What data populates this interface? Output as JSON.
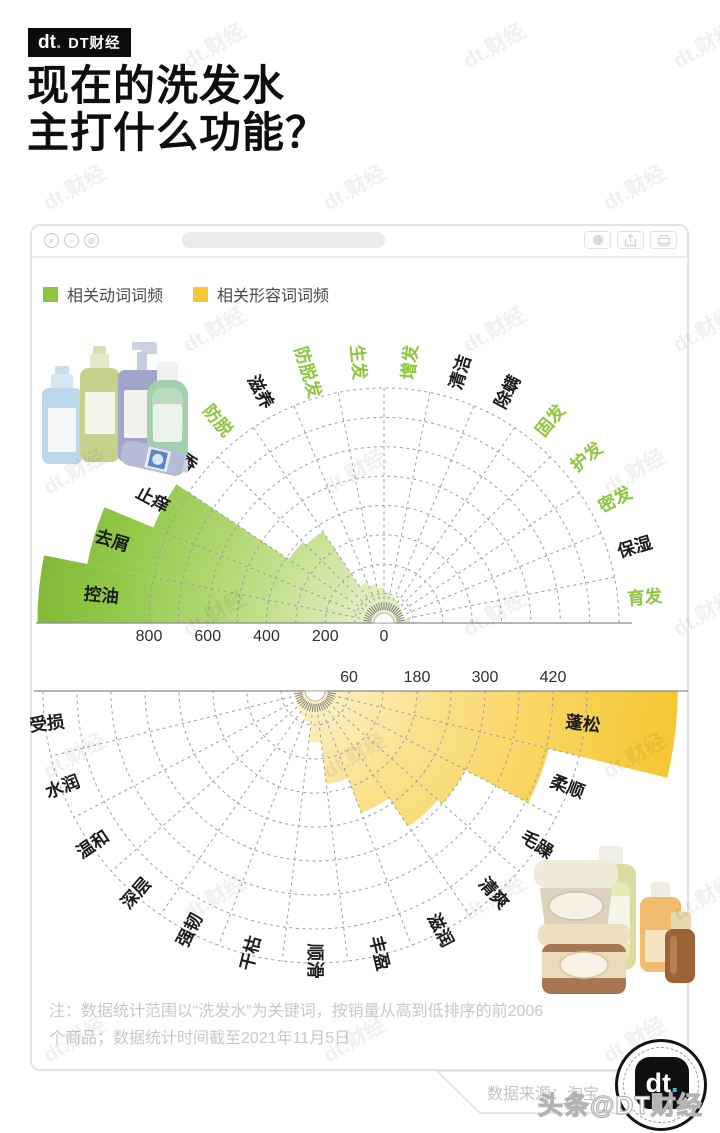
{
  "header": {
    "logo": "dt",
    "logo_dot": ".",
    "brand": "DT财经",
    "title_line1": "现在的洗发水",
    "title_line2": "主打什么功能？"
  },
  "watermark": {
    "text": "dt.财经"
  },
  "window": {
    "controls": [
      {
        "name": "close",
        "glyph": "×"
      },
      {
        "name": "minimize",
        "glyph": "−"
      },
      {
        "name": "block",
        "glyph": "⊘"
      }
    ],
    "legend": [
      {
        "label": "相关动词词频",
        "color": "#8cc63f"
      },
      {
        "label": "相关形容词词频",
        "color": "#f6c831"
      }
    ],
    "note_line1": "注：数据统计范围以“洗发水”为关键词，按销量从高到低排序的前2006",
    "note_line2": "个商品；数据统计时间截至2021年11月5日",
    "source": "数据来源：淘宝"
  },
  "footer": {
    "logo": "dt",
    "logo_dot": ".",
    "credit": "头条@DT财经"
  },
  "chart_data": [
    {
      "type": "bar",
      "subtype": "rose-semicircle",
      "orientation": "opens-up, values grow toward left axis",
      "name": "相关动词词频",
      "rim_value": 800,
      "ring_step": 100,
      "axis_ticks": [
        800,
        600,
        400,
        200,
        0
      ],
      "categories": [
        "控油",
        "去屑",
        "止痒",
        "留香",
        "防脱",
        "滋养",
        "防脱发",
        "生发",
        "增发",
        "清洁",
        "除螨",
        "固发",
        "护发",
        "密发",
        "保湿",
        "育发"
      ],
      "values": [
        1180,
        1030,
        850,
        390,
        375,
        150,
        135,
        120,
        105,
        95,
        88,
        82,
        76,
        70,
        62,
        90
      ],
      "highlight_flags": [
        false,
        false,
        false,
        false,
        true,
        false,
        true,
        true,
        true,
        false,
        false,
        true,
        true,
        true,
        false,
        true
      ],
      "label_color_default": "#1c1c1c",
      "label_color_highlight": "#8dc63f",
      "fill_gradient": [
        "#e9f2cf",
        "#c2e08a",
        "#93c94b",
        "#7cb32d"
      ],
      "grid": "dashed semicircle, 16 sectors of 11.25°"
    },
    {
      "type": "bar",
      "subtype": "rose-semicircle",
      "orientation": "opens-down, values grow toward right axis",
      "name": "相关形容词词频",
      "rim_value": 480,
      "ring_step": 60,
      "axis_ticks": [
        60,
        180,
        300,
        420
      ],
      "categories": [
        "蓬松",
        "柔顺",
        "毛躁",
        "清爽",
        "滋润",
        "丰盈",
        "顺滑",
        "干枯",
        "强韧",
        "深层",
        "温和",
        "水润",
        "受损"
      ],
      "values": [
        640,
        425,
        300,
        290,
        230,
        165,
        90,
        55,
        48,
        42,
        38,
        34,
        30
      ],
      "highlight_flags": [
        false,
        false,
        false,
        false,
        false,
        false,
        false,
        false,
        false,
        false,
        false,
        false,
        false
      ],
      "label_color_default": "#1c1c1c",
      "label_color_highlight": "#8dc63f",
      "fill_gradient": [
        "#fdf2c8",
        "#fbe089",
        "#f8d152",
        "#f5c52e"
      ],
      "grid": "dashed semicircle, 13 sectors of 13.85°"
    }
  ]
}
